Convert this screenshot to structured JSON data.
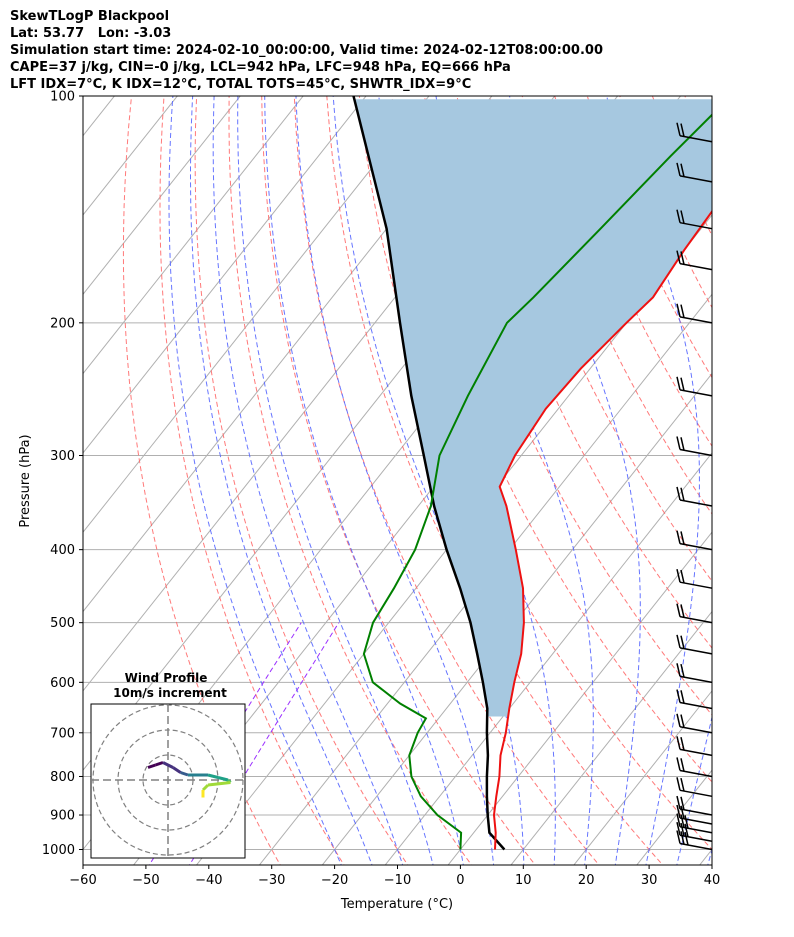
{
  "header": {
    "line1": "SkewTLogP Blackpool",
    "line2": "Lat: 53.77   Lon: -3.03",
    "line3": "Simulation start time: 2024-02-10_00:00:00, Valid time: 2024-02-12T08:00:00.00",
    "line4": "CAPE=37 j/kg, CIN=-0 j/kg, LCL=942 hPa, LFC=948 hPa, EQ=666 hPa",
    "line5": "LFT IDX=7°C, K IDX=12°C, TOTAL TOTS=45°C, SHWTR_IDX=9°C"
  },
  "colors": {
    "temperature": "#ee1111",
    "dewpoint": "#008000",
    "parcel": "#000000",
    "cape_fill": "#a6c8e0",
    "dry_adiabat": "#ff6a6a",
    "moist_adiabat": "#5566ff",
    "mixing_ratio": "#9b30ff",
    "isotherm": "#b0b0b0"
  },
  "chart_data": [
    {
      "type": "line",
      "subtype": "skew-t log-p",
      "xlabel": "Temperature (°C)",
      "ylabel": "Pressure (hPa)",
      "xlim": [
        -60,
        40
      ],
      "ylim": [
        1050,
        100
      ],
      "y_scale": "log",
      "x_ticks": [
        "−60",
        "−50",
        "−40",
        "−30",
        "−20",
        "−10",
        "0",
        "10",
        "20",
        "30",
        "40"
      ],
      "y_ticks": [
        "100",
        "200",
        "300",
        "400",
        "500",
        "600",
        "700",
        "800",
        "900",
        "1000"
      ],
      "grid": true,
      "series": [
        {
          "role": "temperature",
          "points": [
            [
              1000,
              5.5
            ],
            [
              950,
              3.5
            ],
            [
              900,
              1.0
            ],
            [
              850,
              -1.0
            ],
            [
              800,
              -3.0
            ],
            [
              750,
              -5.5
            ],
            [
              700,
              -7.5
            ],
            [
              650,
              -10.0
            ],
            [
              600,
              -12.5
            ],
            [
              550,
              -15.0
            ],
            [
              500,
              -18.5
            ],
            [
              450,
              -23.0
            ],
            [
              400,
              -29.0
            ],
            [
              350,
              -36.0
            ],
            [
              330,
              -39.5
            ],
            [
              300,
              -41.0
            ],
            [
              260,
              -42.0
            ],
            [
              230,
              -41.5
            ],
            [
              200,
              -40.0
            ],
            [
              185,
              -39.0
            ],
            [
              160,
              -40.0
            ],
            [
              140,
              -40.5
            ],
            [
              125,
              -40.5
            ],
            [
              110,
              -39.0
            ],
            [
              100,
              -39.0
            ]
          ]
        },
        {
          "role": "dewpoint",
          "points": [
            [
              1000,
              0.0
            ],
            [
              950,
              -2.0
            ],
            [
              900,
              -8.0
            ],
            [
              850,
              -13.0
            ],
            [
              800,
              -17.0
            ],
            [
              750,
              -20.0
            ],
            [
              700,
              -21.5
            ],
            [
              670,
              -22.0
            ],
            [
              640,
              -28.0
            ],
            [
              600,
              -35.0
            ],
            [
              550,
              -40.0
            ],
            [
              500,
              -42.5
            ],
            [
              450,
              -43.5
            ],
            [
              400,
              -45.0
            ],
            [
              350,
              -48.0
            ],
            [
              300,
              -53.0
            ],
            [
              250,
              -56.0
            ],
            [
              200,
              -59.0
            ],
            [
              185,
              -58.0
            ],
            [
              150,
              -56.0
            ],
            [
              120,
              -54.0
            ],
            [
              100,
              -52.0
            ]
          ]
        },
        {
          "role": "parcel",
          "points": [
            [
              1000,
              7.0
            ],
            [
              950,
              2.5
            ],
            [
              900,
              0.0
            ],
            [
              850,
              -2.5
            ],
            [
              800,
              -5.0
            ],
            [
              750,
              -7.5
            ],
            [
              700,
              -10.5
            ],
            [
              650,
              -13.5
            ],
            [
              600,
              -17.5
            ],
            [
              550,
              -22.0
            ],
            [
              500,
              -27.0
            ],
            [
              450,
              -33.0
            ],
            [
              400,
              -40.0
            ],
            [
              350,
              -47.5
            ],
            [
              300,
              -55.5
            ],
            [
              250,
              -65.0
            ],
            [
              200,
              -76.0
            ],
            [
              150,
              -90.0
            ],
            [
              100,
              -112.0
            ]
          ]
        }
      ],
      "wind_barbs": [
        "1000",
        "975",
        "950",
        "925",
        "900",
        "850",
        "800",
        "750",
        "700",
        "650",
        "600",
        "550",
        "500",
        "450",
        "400",
        "350",
        "300",
        "250",
        "200",
        "170",
        "150",
        "130",
        "115"
      ]
    },
    {
      "type": "scatter",
      "subtype": "hodograph",
      "title": "Wind Profile",
      "subtitle": "10m/s increment",
      "rings": [
        10,
        20,
        30
      ],
      "points": [
        [
          -8,
          5
        ],
        [
          -5,
          6
        ],
        [
          -2,
          7
        ],
        [
          2,
          5
        ],
        [
          5,
          3
        ],
        [
          8,
          2
        ],
        [
          12,
          2
        ],
        [
          16,
          2
        ],
        [
          20,
          1
        ],
        [
          24,
          0
        ],
        [
          25,
          -1
        ],
        [
          16,
          -2
        ],
        [
          14,
          -4
        ],
        [
          14,
          -7
        ]
      ]
    }
  ]
}
